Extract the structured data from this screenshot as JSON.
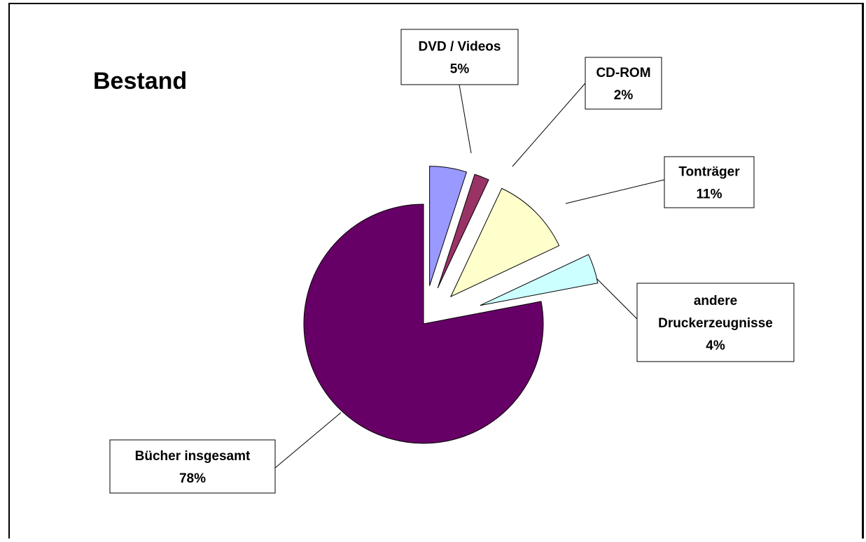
{
  "chart_data": {
    "type": "pie",
    "title": "Bestand",
    "exploded": true,
    "slices": [
      {
        "label": "Bücher insgesamt",
        "percent_label": "78%",
        "value": 78,
        "color": "#660066"
      },
      {
        "label": "DVD / Videos",
        "percent_label": "5%",
        "value": 5,
        "color": "#9999ff"
      },
      {
        "label": "CD-ROM",
        "percent_label": "2%",
        "value": 2,
        "color": "#993366"
      },
      {
        "label": "Tonträger",
        "percent_label": "11%",
        "value": 11,
        "color": "#ffffcc"
      },
      {
        "label": "andere Druckerzeugnisse",
        "percent_label": "4%",
        "value": 4,
        "color": "#ccffff"
      }
    ]
  }
}
